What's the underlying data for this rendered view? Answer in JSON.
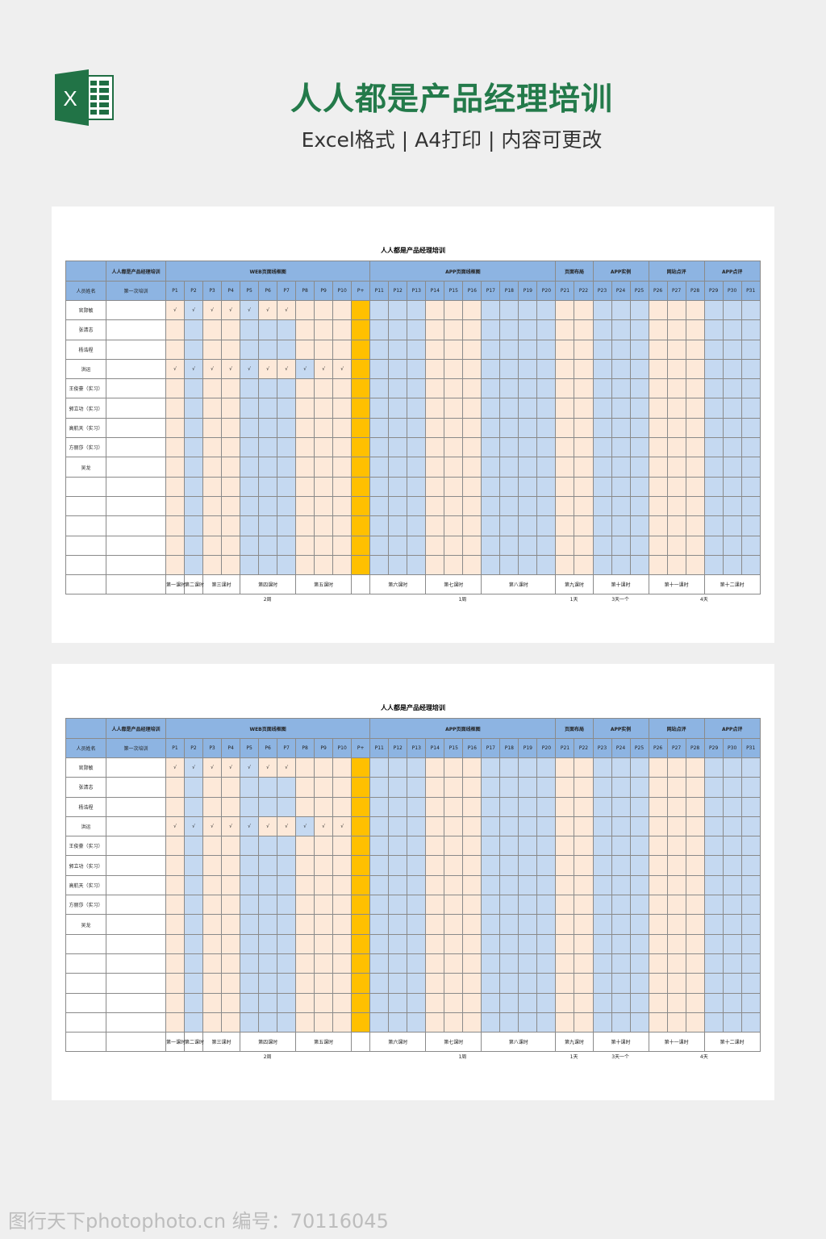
{
  "header": {
    "title": "人人都是产品经理培训",
    "subtitle": "Excel格式 | A4打印 | 内容可更改",
    "logo_icon": "excel-icon",
    "logo_letter": "X"
  },
  "colors": {
    "header_blue": "#8db4e2",
    "cell_blue": "#c5d9f1",
    "cell_peach": "#fde9d9",
    "cell_orange": "#ffc000",
    "title_green": "#237a4a"
  },
  "sheet": {
    "title": "人人都是产品经理培训",
    "corner_label": "",
    "course_label": "人人都是产品经理培训",
    "name_header": "人员姓名",
    "session_header": "第一次培训",
    "groups": [
      {
        "label": "WEB页面线框图",
        "span": 11
      },
      {
        "label": "APP页面线框图",
        "span": 10
      },
      {
        "label": "页面布局",
        "span": 2
      },
      {
        "label": "APP实例",
        "span": 3
      },
      {
        "label": "网站点评",
        "span": 3
      },
      {
        "label": "APP点评",
        "span": 3
      }
    ],
    "columns": [
      {
        "label": "P1",
        "color": "peach"
      },
      {
        "label": "P2",
        "color": "blue"
      },
      {
        "label": "P3",
        "color": "peach"
      },
      {
        "label": "P4",
        "color": "peach"
      },
      {
        "label": "P5",
        "color": "blue"
      },
      {
        "label": "P6",
        "color": "blue"
      },
      {
        "label": "P7",
        "color": "blue"
      },
      {
        "label": "P8",
        "color": "peach"
      },
      {
        "label": "P9",
        "color": "peach"
      },
      {
        "label": "P10",
        "color": "peach"
      },
      {
        "label": "P+",
        "color": "orange"
      },
      {
        "label": "P11",
        "color": "blue"
      },
      {
        "label": "P12",
        "color": "blue"
      },
      {
        "label": "P13",
        "color": "blue"
      },
      {
        "label": "P14",
        "color": "peach"
      },
      {
        "label": "P15",
        "color": "peach"
      },
      {
        "label": "P16",
        "color": "peach"
      },
      {
        "label": "P17",
        "color": "blue"
      },
      {
        "label": "P18",
        "color": "blue"
      },
      {
        "label": "P19",
        "color": "blue"
      },
      {
        "label": "P20",
        "color": "blue"
      },
      {
        "label": "P21",
        "color": "peach"
      },
      {
        "label": "P22",
        "color": "peach"
      },
      {
        "label": "P23",
        "color": "blue"
      },
      {
        "label": "P24",
        "color": "blue"
      },
      {
        "label": "P25",
        "color": "blue"
      },
      {
        "label": "P26",
        "color": "peach"
      },
      {
        "label": "P27",
        "color": "peach"
      },
      {
        "label": "P28",
        "color": "peach"
      },
      {
        "label": "P29",
        "color": "blue"
      },
      {
        "label": "P30",
        "color": "blue"
      },
      {
        "label": "P31",
        "color": "blue"
      }
    ],
    "check_mark": "√",
    "rows": [
      {
        "name": "官郧敏",
        "checks": [
          "P1",
          "P2",
          "P3",
          "P4",
          "P5",
          "P6",
          "P7"
        ],
        "overrides": {
          "P6": "peach",
          "P7": "peach"
        }
      },
      {
        "name": "张清志",
        "checks": [],
        "overrides": {}
      },
      {
        "name": "杨浩程",
        "checks": [],
        "overrides": {}
      },
      {
        "name": "洪运",
        "checks": [
          "P1",
          "P2",
          "P3",
          "P4",
          "P5",
          "P6",
          "P7",
          "P8",
          "P9",
          "P10"
        ],
        "overrides": {
          "P6": "peach",
          "P7": "peach",
          "P8": "blue"
        }
      },
      {
        "name": "王俊豪（实习）",
        "checks": [],
        "overrides": {}
      },
      {
        "name": "郭立功（实习）",
        "checks": [],
        "overrides": {}
      },
      {
        "name": "高航天（实习）",
        "checks": [],
        "overrides": {}
      },
      {
        "name": "方丽莎（实习）",
        "checks": [],
        "overrides": {}
      },
      {
        "name": "吴龙",
        "checks": [],
        "overrides": {}
      },
      {
        "name": "",
        "checks": [],
        "overrides": {}
      },
      {
        "name": "",
        "checks": [],
        "overrides": {}
      },
      {
        "name": "",
        "checks": [],
        "overrides": {}
      },
      {
        "name": "",
        "checks": [],
        "overrides": {}
      },
      {
        "name": "",
        "checks": [],
        "overrides": {}
      }
    ],
    "lessons": [
      {
        "label": "第一课时",
        "span": 1
      },
      {
        "label": "第二课时",
        "span": 1
      },
      {
        "label": "第三课时",
        "span": 2
      },
      {
        "label": "第四课时",
        "span": 3
      },
      {
        "label": "第五课时",
        "span": 3
      },
      {
        "label": "",
        "span": 1
      },
      {
        "label": "第六课时",
        "span": 3
      },
      {
        "label": "第七课时",
        "span": 3
      },
      {
        "label": "第八课时",
        "span": 4
      },
      {
        "label": "第九课时",
        "span": 2
      },
      {
        "label": "第十课时",
        "span": 3
      },
      {
        "label": "第十一课时",
        "span": 3
      },
      {
        "label": "第十二课时",
        "span": 3
      }
    ],
    "durations": [
      {
        "label": "2周",
        "span": 11
      },
      {
        "label": "1周",
        "span": 10
      },
      {
        "label": "1天",
        "span": 2
      },
      {
        "label": "3天一个",
        "span": 3
      },
      {
        "label": "4天",
        "span": 6
      }
    ]
  },
  "watermark": "图行天下photophoto.cn 编号：70116045"
}
